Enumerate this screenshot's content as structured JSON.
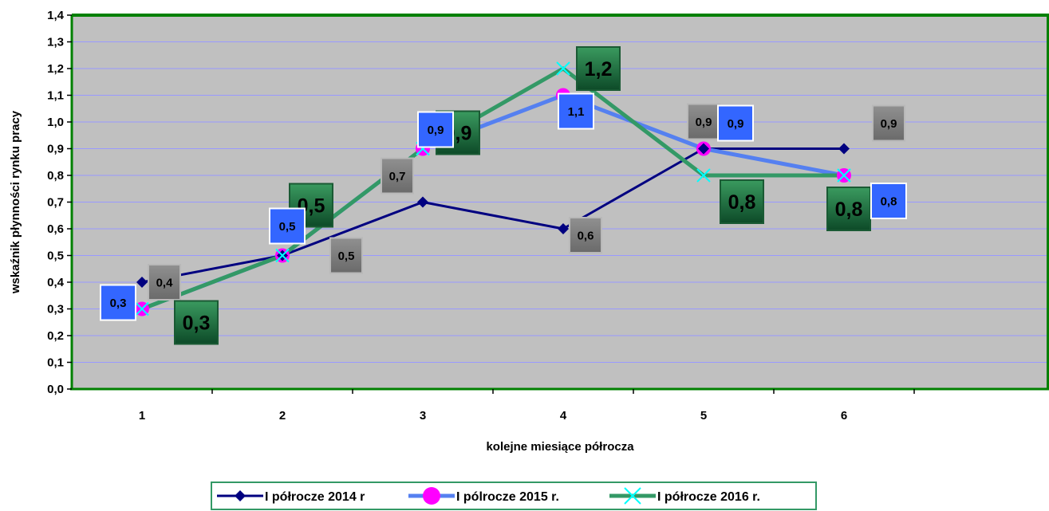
{
  "chart_data": {
    "type": "line",
    "title": "",
    "xlabel": "kolejne miesiące półrocza",
    "ylabel": "wskaźnik płynności rynku pracy",
    "categories": [
      "1",
      "2",
      "3",
      "4",
      "5",
      "6"
    ],
    "ylim": [
      0,
      1.4
    ],
    "y_ticks": [
      "0,0",
      "0,1",
      "0,2",
      "0,3",
      "0,4",
      "0,5",
      "0,6",
      "0,7",
      "0,8",
      "0,9",
      "1,0",
      "1,1",
      "1,2",
      "1,3",
      "1,4"
    ],
    "grid": true,
    "legend_position": "bottom",
    "series": [
      {
        "name": "I półrocze 2014 r",
        "values": [
          0.4,
          0.5,
          0.7,
          0.6,
          0.9,
          0.9
        ],
        "labels": [
          "0,4",
          "0,5",
          "0,7",
          "0,6",
          "0,9",
          "0,9"
        ],
        "color": "#000080",
        "marker": "diamond",
        "label_bg": "#808080"
      },
      {
        "name": "I pólrocze 2015 r.",
        "values": [
          0.3,
          0.5,
          0.9,
          1.1,
          0.9,
          0.8
        ],
        "labels": [
          "0,3",
          "0,5",
          "0,9",
          "1,1",
          "0,9",
          "0,8"
        ],
        "color": "#5580f0",
        "marker": "circle",
        "marker_color": "#ff00ff",
        "label_bg": "#3366ff"
      },
      {
        "name": "I półrocze 2016 r.",
        "values": [
          0.3,
          0.5,
          0.9,
          1.2,
          0.8,
          0.8
        ],
        "labels": [
          "0,3",
          "0,5",
          "0,9",
          "1,2",
          "0,8",
          "0,8"
        ],
        "color": "#339966",
        "marker": "x",
        "marker_color": "#00ffff",
        "label_bg": "#1a6b3e"
      }
    ],
    "colors": {
      "plot_background": "#c0c0c0",
      "plot_border": "#008000",
      "gridline": "#9999ff",
      "legend_border": "#339966"
    }
  }
}
